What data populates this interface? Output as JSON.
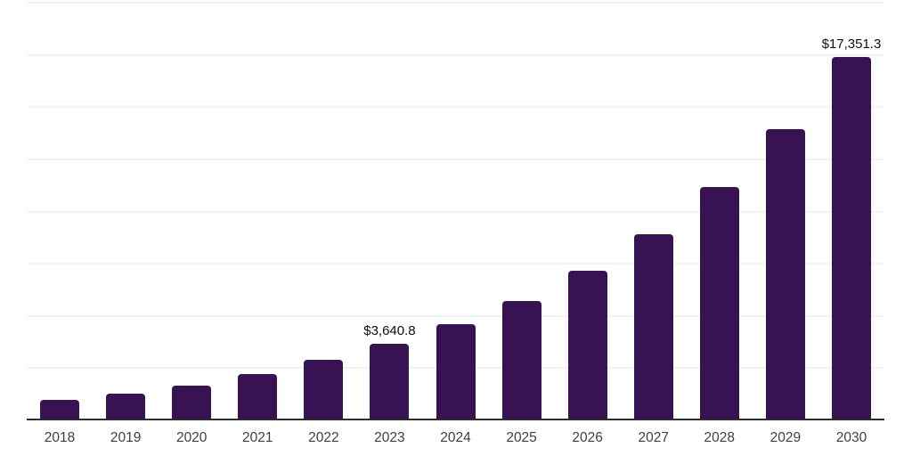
{
  "chart_data": {
    "type": "bar",
    "title": "",
    "xlabel": "",
    "ylabel": "",
    "categories": [
      "2018",
      "2019",
      "2020",
      "2021",
      "2022",
      "2023",
      "2024",
      "2025",
      "2026",
      "2027",
      "2028",
      "2029",
      "2030"
    ],
    "values": [
      960,
      1250,
      1630,
      2170,
      2840,
      3640.8,
      4550,
      5690,
      7110,
      8890,
      11110,
      13890,
      17351.3
    ],
    "data_labels": [
      "",
      "",
      "",
      "",
      "",
      "$3,640.8",
      "",
      "",
      "",
      "",
      "",
      "",
      "$17,351.3"
    ],
    "ylim": [
      0,
      20000
    ],
    "grid": "horizontal",
    "grid_step": 2500,
    "legend": "none",
    "y_axis_tick_labels_visible": false,
    "colors": {
      "bar": "#371353",
      "gridline": "#f2f2f4",
      "axis_line": "#2d2d2d",
      "data_label_text": "#0f0f0f",
      "tick_label_text": "#3f3f3f",
      "background": "#ffffff"
    }
  }
}
